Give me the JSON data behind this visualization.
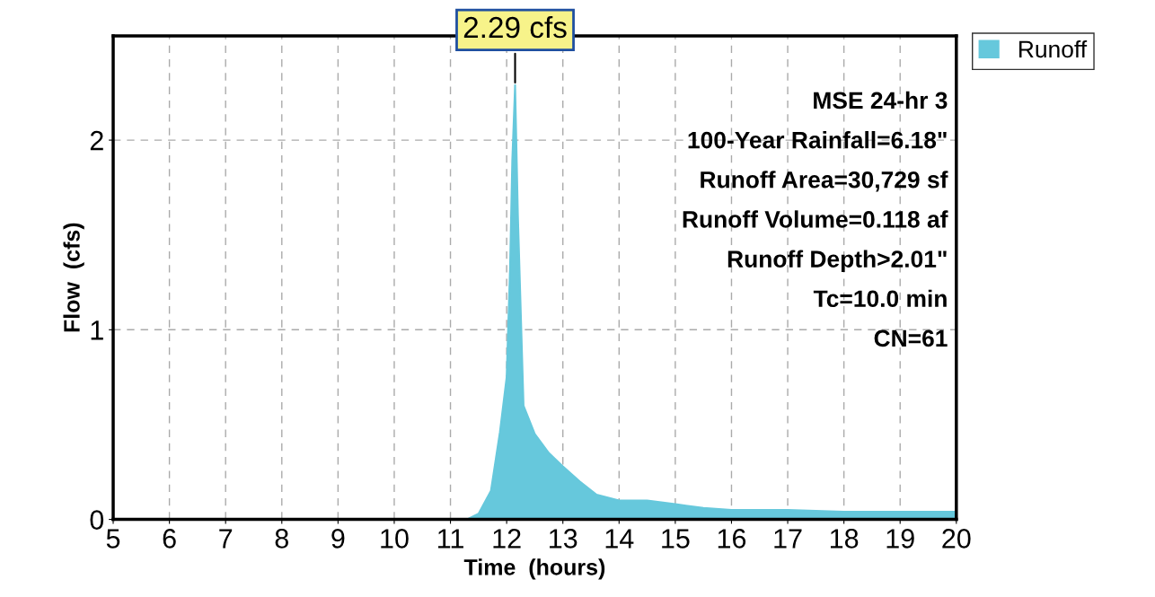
{
  "chart_data": {
    "type": "area",
    "xlabel": "Time  (hours)",
    "ylabel": "Flow  (cfs)",
    "x": [
      5,
      6,
      7,
      8,
      9,
      10,
      11,
      11.3,
      11.5,
      11.72,
      11.88,
      12.0,
      12.06,
      12.1,
      12.15,
      12.2,
      12.3,
      12.5,
      12.75,
      13.0,
      13.3,
      13.6,
      14.0,
      14.5,
      15.0,
      15.5,
      16.0,
      17.0,
      18.0,
      19.0,
      20.0
    ],
    "series": [
      {
        "name": "Runoff",
        "color": "#66c8dc",
        "values": [
          0,
          0,
          0,
          0,
          0,
          0,
          0,
          0,
          0.03,
          0.15,
          0.46,
          0.75,
          1.32,
          1.89,
          2.29,
          1.6,
          0.6,
          0.45,
          0.35,
          0.28,
          0.2,
          0.13,
          0.1,
          0.1,
          0.08,
          0.06,
          0.05,
          0.05,
          0.04,
          0.04,
          0.04
        ]
      }
    ],
    "xlim": [
      5,
      20
    ],
    "xticks": [
      5,
      6,
      7,
      8,
      9,
      10,
      11,
      12,
      13,
      14,
      15,
      16,
      17,
      18,
      19,
      20
    ],
    "ylim": [
      0,
      2.55
    ],
    "yticks": [
      0,
      1,
      2
    ],
    "grid": true,
    "legend": "top right",
    "annotations": [
      {
        "text": "2.29 cfs",
        "x": 12.15,
        "y": 2.29
      },
      "MSE 24-hr 3",
      "100-Year Rainfall=6.18\"",
      "Runoff Area=30,729 sf",
      "Runoff Volume=0.118 af",
      "Runoff Depth>2.01\"",
      "Tc=10.0 min",
      "CN=61"
    ]
  }
}
